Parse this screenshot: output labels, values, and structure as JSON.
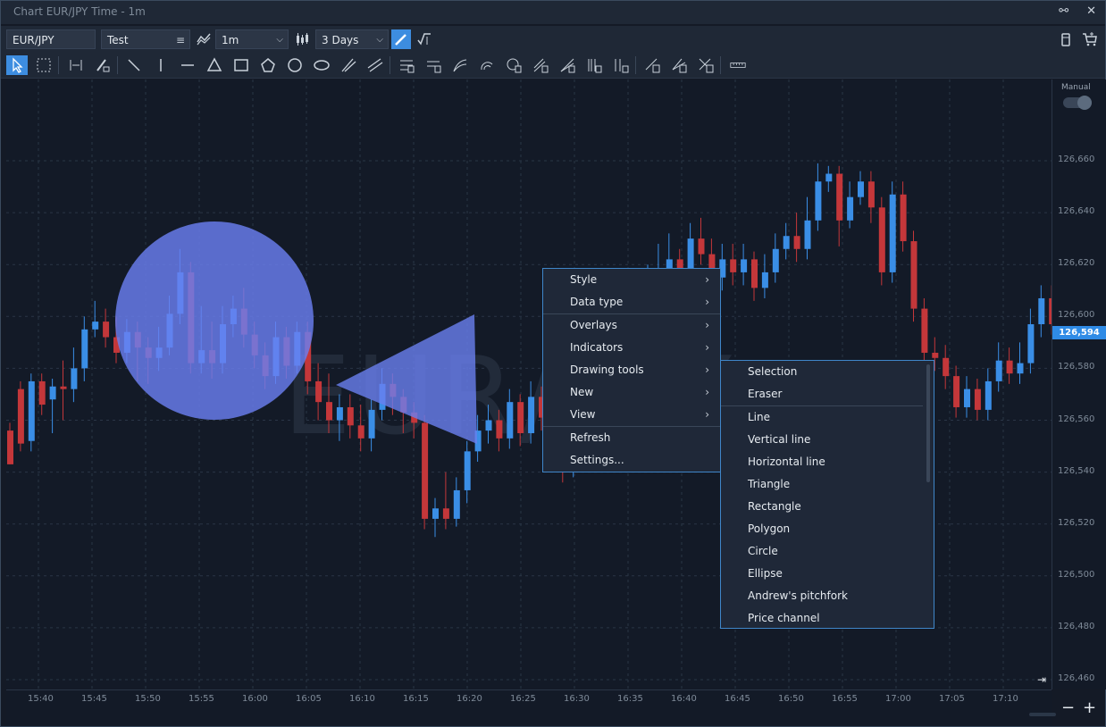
{
  "window": {
    "title": "Chart EUR/JPY Time - 1m"
  },
  "toolbar": {
    "symbol": "EUR/JPY",
    "account": "Test",
    "interval": "1m",
    "range": "3 Days"
  },
  "watermark": "EUR/JPY",
  "price_axis": {
    "ticks": [
      "126,660",
      "126,640",
      "126,620",
      "126,600",
      "126,580",
      "126,560",
      "126,540",
      "126,520",
      "126,500",
      "126,480",
      "126,460"
    ],
    "current_price": "126,594",
    "mode_label": "Manual"
  },
  "time_axis": {
    "ticks": [
      "15:40",
      "15:45",
      "15:50",
      "15:55",
      "16:00",
      "16:05",
      "16:10",
      "16:15",
      "16:20",
      "16:25",
      "16:30",
      "16:35",
      "16:40",
      "16:45",
      "16:50",
      "16:55",
      "17:00",
      "17:05",
      "17:10"
    ]
  },
  "colors": {
    "up": "#3a8ee6",
    "down": "#c4373a",
    "accent": "#3d8de0",
    "drawing": "#6a7ff0"
  },
  "context_menu": {
    "items": [
      {
        "label": "Style",
        "submenu": true
      },
      {
        "label": "Data type",
        "submenu": true
      },
      {
        "label": "Overlays",
        "submenu": true
      },
      {
        "label": "Indicators",
        "submenu": true
      },
      {
        "label": "Drawing tools",
        "submenu": true
      },
      {
        "label": "New",
        "submenu": true
      },
      {
        "label": "View",
        "submenu": true
      },
      {
        "label": "Refresh",
        "submenu": false
      },
      {
        "label": "Settings...",
        "submenu": false
      }
    ]
  },
  "drawing_tools_menu": {
    "items": [
      "Selection",
      "Eraser",
      "Line",
      "Vertical line",
      "Horizontal line",
      "Triangle",
      "Rectangle",
      "Polygon",
      "Circle",
      "Ellipse",
      "Andrew's pitchfork",
      "Price channel"
    ]
  },
  "chart_data": {
    "type": "candlestick",
    "symbol": "EUR/JPY",
    "interval": "1m",
    "ylim": [
      126.455,
      126.685
    ],
    "candles": [
      [
        126.556,
        126.543,
        126.559,
        126.543
      ],
      [
        126.572,
        126.551,
        126.575,
        126.548
      ],
      [
        126.552,
        126.575,
        126.578,
        126.548
      ],
      [
        126.575,
        126.566,
        126.578,
        126.562
      ],
      [
        126.568,
        126.573,
        126.576,
        126.555
      ],
      [
        126.573,
        126.572,
        126.583,
        126.56
      ],
      [
        126.572,
        126.58,
        126.588,
        126.567
      ],
      [
        126.58,
        126.595,
        126.6,
        126.575
      ],
      [
        126.595,
        126.598,
        126.606,
        126.592
      ],
      [
        126.598,
        126.592,
        126.603,
        126.588
      ],
      [
        126.592,
        126.586,
        126.6,
        126.582
      ],
      [
        126.586,
        126.594,
        126.599,
        126.582
      ],
      [
        126.594,
        126.588,
        126.598,
        126.575
      ],
      [
        126.588,
        126.584,
        126.592,
        126.574
      ],
      [
        126.584,
        126.588,
        126.596,
        126.579
      ],
      [
        126.588,
        126.601,
        126.608,
        126.585
      ],
      [
        126.601,
        126.617,
        126.626,
        126.597
      ],
      [
        126.617,
        126.582,
        126.621,
        126.578
      ],
      [
        126.582,
        126.587,
        126.604,
        126.578
      ],
      [
        126.587,
        126.582,
        126.598,
        126.576
      ],
      [
        126.582,
        126.597,
        126.604,
        126.578
      ],
      [
        126.597,
        126.603,
        126.608,
        126.592
      ],
      [
        126.603,
        126.593,
        126.611,
        126.588
      ],
      [
        126.593,
        126.585,
        126.598,
        126.58
      ],
      [
        126.585,
        126.577,
        126.59,
        126.572
      ],
      [
        126.577,
        126.592,
        126.598,
        126.574
      ],
      [
        126.592,
        126.581,
        126.596,
        126.576
      ],
      [
        126.581,
        126.594,
        126.598,
        126.578
      ],
      [
        126.594,
        126.575,
        126.598,
        126.57
      ],
      [
        126.575,
        126.567,
        126.582,
        126.56
      ],
      [
        126.567,
        126.56,
        126.578,
        126.555
      ],
      [
        126.56,
        126.565,
        126.57,
        126.552
      ],
      [
        126.565,
        126.558,
        126.57,
        126.553
      ],
      [
        126.558,
        126.553,
        126.566,
        126.548
      ],
      [
        126.553,
        126.564,
        126.568,
        126.548
      ],
      [
        126.564,
        126.574,
        126.58,
        126.56
      ],
      [
        126.574,
        126.569,
        126.578,
        126.562
      ],
      [
        126.569,
        126.563,
        126.572,
        126.555
      ],
      [
        126.563,
        126.559,
        126.567,
        126.553
      ],
      [
        126.559,
        126.522,
        126.562,
        126.518
      ],
      [
        126.522,
        126.526,
        126.53,
        126.515
      ],
      [
        126.526,
        126.522,
        126.54,
        126.518
      ],
      [
        126.522,
        126.533,
        126.538,
        126.519
      ],
      [
        126.533,
        126.548,
        126.552,
        126.528
      ],
      [
        126.548,
        126.556,
        126.562,
        126.544
      ],
      [
        126.556,
        126.56,
        126.566,
        126.551
      ],
      [
        126.56,
        126.553,
        126.564,
        126.548
      ],
      [
        126.553,
        126.567,
        126.572,
        126.549
      ],
      [
        126.567,
        126.555,
        126.57,
        126.55
      ],
      [
        126.555,
        126.569,
        126.575,
        126.551
      ],
      [
        126.569,
        126.561,
        126.573,
        126.556
      ],
      [
        126.561,
        126.55,
        126.566,
        126.546
      ],
      [
        126.55,
        126.541,
        126.556,
        126.536
      ],
      [
        126.541,
        126.553,
        126.558,
        126.538
      ],
      [
        126.553,
        126.561,
        126.566,
        126.549
      ],
      [
        126.561,
        126.553,
        126.566,
        126.548
      ],
      [
        126.553,
        126.565,
        126.57,
        126.55
      ],
      [
        126.565,
        126.574,
        126.58,
        126.56
      ],
      [
        126.574,
        126.594,
        126.6,
        126.57
      ],
      [
        126.594,
        126.6,
        126.61,
        126.59
      ],
      [
        126.6,
        126.612,
        126.62,
        126.596
      ],
      [
        126.612,
        126.618,
        126.628,
        126.607
      ],
      [
        126.618,
        126.622,
        126.632,
        126.614
      ],
      [
        126.622,
        126.616,
        126.626,
        126.611
      ],
      [
        126.616,
        126.63,
        126.636,
        126.612
      ],
      [
        126.63,
        126.624,
        126.638,
        126.62
      ],
      [
        126.624,
        126.615,
        126.63,
        126.611
      ],
      [
        126.615,
        126.622,
        126.628,
        126.61
      ],
      [
        126.622,
        126.617,
        126.628,
        126.612
      ],
      [
        126.617,
        126.622,
        126.628,
        126.612
      ],
      [
        126.622,
        126.611,
        126.625,
        126.606
      ],
      [
        126.611,
        126.617,
        126.624,
        126.607
      ],
      [
        126.617,
        126.626,
        126.632,
        126.613
      ],
      [
        126.626,
        126.631,
        126.636,
        126.622
      ],
      [
        126.631,
        126.626,
        126.64,
        126.621
      ],
      [
        126.626,
        126.637,
        126.646,
        126.622
      ],
      [
        126.637,
        126.652,
        126.659,
        126.633
      ],
      [
        126.652,
        126.655,
        126.658,
        126.648
      ],
      [
        126.655,
        126.637,
        126.658,
        126.627
      ],
      [
        126.637,
        126.646,
        126.652,
        126.634
      ],
      [
        126.646,
        126.652,
        126.656,
        126.643
      ],
      [
        126.652,
        126.642,
        126.656,
        126.636
      ],
      [
        126.642,
        126.617,
        126.646,
        126.612
      ],
      [
        126.617,
        126.647,
        126.652,
        126.613
      ],
      [
        126.647,
        126.629,
        126.652,
        126.625
      ],
      [
        126.629,
        126.603,
        126.633,
        126.598
      ],
      [
        126.603,
        126.586,
        126.607,
        126.582
      ],
      [
        126.586,
        126.584,
        126.592,
        126.579
      ],
      [
        126.584,
        126.577,
        126.589,
        126.572
      ],
      [
        126.577,
        126.565,
        126.581,
        126.561
      ],
      [
        126.565,
        126.572,
        126.577,
        126.561
      ],
      [
        126.572,
        126.564,
        126.576,
        126.56
      ],
      [
        126.564,
        126.575,
        126.58,
        126.56
      ],
      [
        126.575,
        126.583,
        126.59,
        126.571
      ],
      [
        126.583,
        126.578,
        126.588,
        126.574
      ],
      [
        126.578,
        126.582,
        126.59,
        126.574
      ],
      [
        126.582,
        126.597,
        126.603,
        126.578
      ],
      [
        126.597,
        126.607,
        126.612,
        126.592
      ],
      [
        126.607,
        126.597,
        126.612,
        126.593
      ],
      [
        126.597,
        126.608,
        126.615,
        126.593
      ],
      [
        126.608,
        126.612,
        126.618,
        126.604
      ],
      [
        126.612,
        126.616,
        126.624,
        126.607
      ],
      [
        126.616,
        126.594,
        126.62,
        126.589
      ]
    ]
  }
}
